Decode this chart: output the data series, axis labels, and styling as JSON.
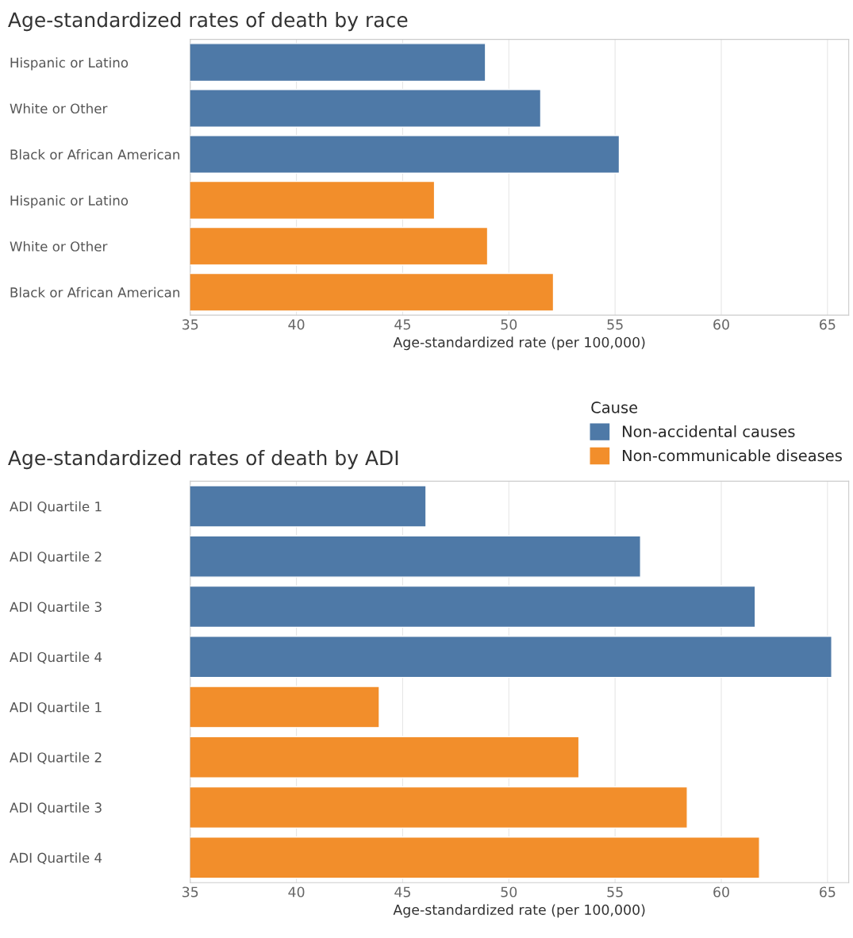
{
  "chart_data": [
    {
      "type": "bar",
      "orientation": "horizontal",
      "title": "Age-standardized rates of death by race",
      "xlabel": "Age-standardized rate (per 100,000)",
      "categories": [
        "Hispanic or Latino",
        "White or Other",
        "Black or African American",
        "Hispanic or Latino",
        "White or Other",
        "Black or African American"
      ],
      "series": [
        {
          "name": "Non-accidental causes",
          "color": "#4e79a7",
          "values": [
            48.9,
            51.5,
            55.2,
            null,
            null,
            null
          ]
        },
        {
          "name": "Non-communicable diseases",
          "color": "#f28e2b",
          "values": [
            null,
            null,
            null,
            46.5,
            49.0,
            52.1
          ]
        }
      ],
      "xlim": [
        35,
        66
      ],
      "xticks": [
        35,
        40,
        45,
        50,
        55,
        60,
        65
      ],
      "grid": "x",
      "legend": "bottom right",
      "legend_title": "Cause"
    },
    {
      "type": "bar",
      "orientation": "horizontal",
      "title": "Age-standardized rates of death by ADI",
      "xlabel": "Age-standardized rate (per 100,000)",
      "categories": [
        "ADI Quartile 1",
        "ADI Quartile 2",
        "ADI Quartile 3",
        "ADI Quartile 4",
        "ADI Quartile 1",
        "ADI Quartile 2",
        "ADI Quartile 3",
        "ADI Quartile 4"
      ],
      "series": [
        {
          "color": "#4e79a7",
          "values": [
            46.1,
            56.2,
            61.6,
            65.2,
            null,
            null,
            null,
            null
          ]
        },
        {
          "color": "#f28e2b",
          "values": [
            null,
            null,
            null,
            null,
            43.9,
            53.3,
            58.4,
            61.8
          ]
        }
      ],
      "xlim": [
        35,
        66
      ],
      "xticks": [
        35,
        40,
        45,
        50,
        55,
        60,
        65
      ],
      "grid": "x",
      "legend": false
    }
  ]
}
